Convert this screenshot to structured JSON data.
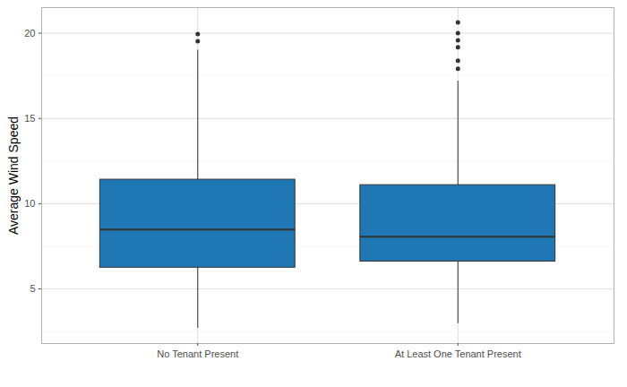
{
  "chart_data": {
    "type": "box",
    "ylabel": "Average Wind Speed",
    "categories": [
      "No Tenant Present",
      "At Least One Tenant Present"
    ],
    "values": [
      {
        "low": 2.7,
        "q1": 6.25,
        "median": 8.49,
        "q3": 11.41,
        "high": 19.0,
        "outliers": [
          19.53,
          19.95
        ]
      },
      {
        "low": 2.97,
        "q1": 6.61,
        "median": 8.07,
        "q3": 11.09,
        "high": 17.19,
        "outliers": [
          17.92,
          18.39,
          19.17,
          19.58,
          20.0,
          20.63
        ]
      }
    ],
    "color": "#1f77b4",
    "ylim": [
      1.8,
      21.5
    ],
    "yticks": [
      5,
      10,
      15,
      20
    ],
    "grid": true
  }
}
